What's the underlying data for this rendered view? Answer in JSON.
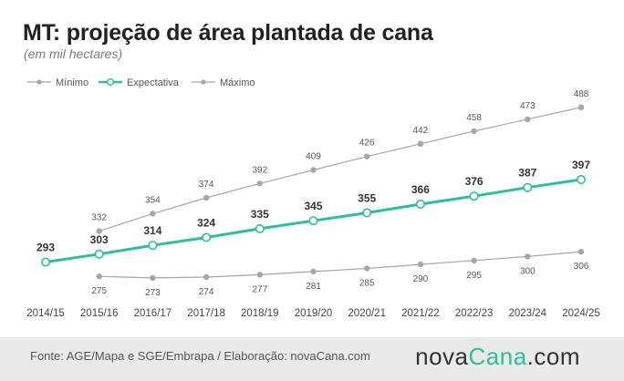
{
  "title": "MT: projeção de área plantada de cana",
  "subtitle": "(em mil hectares)",
  "source": "Fonte: AGE/Mapa e SGE/Embrapa / Elaboração: novaCana.com",
  "brand": {
    "part1": "nova",
    "part2": "Cana",
    "part3": ".com"
  },
  "colors": {
    "gray": "#a6a6a6",
    "accent": "#2bbf9b"
  },
  "chart_data": {
    "type": "line",
    "title": "MT: projeção de área plantada de cana",
    "ylabel": "(em mil hectares)",
    "x": [
      "2014/15",
      "2015/16",
      "2016/17",
      "2017/18",
      "2018/19",
      "2019/20",
      "2020/21",
      "2021/22",
      "2022/23",
      "2023/24",
      "2024/25"
    ],
    "legend": "top-left",
    "grid": false,
    "series": [
      {
        "name": "Mínimo",
        "key": "min",
        "values": [
          null,
          275,
          273,
          274,
          277,
          281,
          285,
          290,
          295,
          300,
          306
        ]
      },
      {
        "name": "Expectativa",
        "key": "exp",
        "values": [
          293,
          303,
          314,
          324,
          335,
          345,
          355,
          366,
          376,
          387,
          397
        ]
      },
      {
        "name": "Máximo",
        "key": "max",
        "values": [
          null,
          332,
          354,
          374,
          392,
          409,
          426,
          442,
          458,
          473,
          488
        ]
      }
    ]
  }
}
